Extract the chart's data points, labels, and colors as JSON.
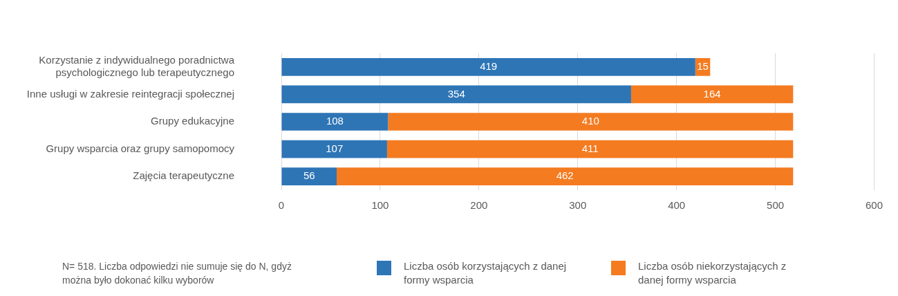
{
  "chart_data": {
    "type": "bar",
    "orientation": "horizontal",
    "stacked": true,
    "categories": [
      "Korzystanie z indywidualnego poradnictwa psychologicznego lub terapeutycznego",
      "Inne usługi w zakresie reintegracji społecznej",
      "Grupy edukacyjne",
      "Grupy wsparcia oraz grupy samopomocy",
      "Zajęcia terapeutyczne"
    ],
    "series": [
      {
        "name": "Liczba osób korzystających z danej formy wsparcia",
        "color": "#2e75b6",
        "values": [
          419,
          354,
          108,
          107,
          56
        ],
        "value_labels": [
          "419",
          "354",
          "108",
          "107",
          "56"
        ]
      },
      {
        "name": "Liczba osób niekorzystających z danej formy wsparcia",
        "color": "#f47b20",
        "values": [
          15,
          164,
          410,
          411,
          462
        ],
        "value_labels": [
          "15",
          "164",
          "410",
          "411",
          "462"
        ]
      }
    ],
    "xlim": [
      0,
      600
    ],
    "xticks": [
      0,
      100,
      200,
      300,
      400,
      500,
      600
    ],
    "grid": "x",
    "legend": "bottom",
    "annotations": [
      "N= 518. Liczba odpowiedzi nie sumuje się do N, gdyż można było dokonać kilku wyborów"
    ]
  }
}
